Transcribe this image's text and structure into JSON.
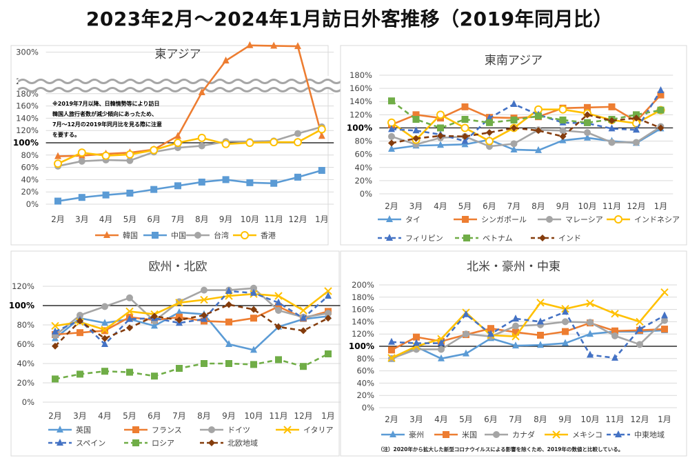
{
  "page": {
    "title": "2023年2月～2024年1月訪日外客推移（2019年同月比）",
    "footnote": "（注）2020年から拡大した新型コロナウイルスによる影響を除くため、2019年の数値と比較している。"
  },
  "colors": {
    "blue": "#5B9BD5",
    "orange": "#ED7D31",
    "gray": "#A5A5A5",
    "yellow": "#FFC000",
    "dblue": "#4472C4",
    "green": "#70AD47",
    "brown": "#843C0C",
    "gold": "#FFD700"
  },
  "chart_data": [
    {
      "type": "line",
      "title": "東アジア",
      "categories": [
        "2月",
        "3月",
        "4月",
        "5月",
        "6月",
        "7月",
        "8月",
        "9月",
        "10月",
        "11月",
        "12月",
        "1月"
      ],
      "broken_axis": true,
      "ylim": [
        0,
        300
      ],
      "yticks_lower": [
        "0%",
        "20%",
        "40%",
        "60%",
        "80%",
        "100%",
        "120%",
        "140%",
        "160%",
        "180%",
        "200%"
      ],
      "yticks_upper": [
        "300%"
      ],
      "note": "※2019年7月以降、日韓情勢等により訪日韓国人旅行者数が減少傾向にあったため、7月～12月の2019年同月比を見る際に注意を要する。",
      "series": [
        {
          "name": "韓国",
          "color": "#ED7D31",
          "marker": "triangle",
          "values": [
            78,
            79,
            82,
            84,
            89,
            111,
            182,
            281,
            315,
            314,
            313,
            111
          ]
        },
        {
          "name": "中国",
          "color": "#5B9BD5",
          "marker": "square",
          "values": [
            5,
            11,
            15,
            18,
            24,
            30,
            36,
            40,
            35,
            34,
            44,
            55
          ]
        },
        {
          "name": "台湾",
          "color": "#A5A5A5",
          "marker": "circle",
          "values": [
            62,
            70,
            72,
            71,
            85,
            92,
            95,
            102,
            102,
            103,
            115,
            126
          ]
        },
        {
          "name": "香港",
          "color": "#FFC000",
          "marker": "circle-open",
          "values": [
            66,
            84,
            79,
            81,
            88,
            100,
            108,
            98,
            100,
            101,
            101,
            122
          ]
        }
      ]
    },
    {
      "type": "line",
      "title": "東南アジア",
      "categories": [
        "2月",
        "3月",
        "4月",
        "5月",
        "6月",
        "7月",
        "8月",
        "9月",
        "10月",
        "11月",
        "12月",
        "1月"
      ],
      "ylim": [
        0,
        180
      ],
      "yticks": [
        "0%",
        "20%",
        "40%",
        "60%",
        "80%",
        "100%",
        "120%",
        "140%",
        "160%",
        "180%"
      ],
      "series": [
        {
          "name": "タイ",
          "color": "#5B9BD5",
          "marker": "triangle",
          "values": [
            68,
            73,
            74,
            75,
            82,
            67,
            66,
            81,
            85,
            80,
            77,
            99
          ]
        },
        {
          "name": "シンガポール",
          "color": "#ED7D31",
          "marker": "square",
          "values": [
            105,
            120,
            115,
            132,
            116,
            115,
            117,
            130,
            131,
            132,
            110,
            150
          ]
        },
        {
          "name": "マレーシア",
          "color": "#A5A5A5",
          "marker": "circle",
          "values": [
            87,
            75,
            85,
            87,
            72,
            76,
            97,
            96,
            93,
            78,
            78,
            102
          ]
        },
        {
          "name": "インドネシア",
          "color": "#FFC000",
          "marker": "circle-open",
          "values": [
            108,
            82,
            120,
            100,
            80,
            100,
            128,
            128,
            122,
            112,
            107,
            127
          ]
        },
        {
          "name": "フィリピン",
          "color": "#4472C4",
          "marker": "triangle",
          "dash": true,
          "values": [
            98,
            96,
            90,
            80,
            115,
            136,
            120,
            108,
            107,
            99,
            97,
            157
          ]
        },
        {
          "name": "ベトナム",
          "color": "#70AD47",
          "marker": "square",
          "dash": true,
          "values": [
            141,
            113,
            100,
            113,
            108,
            112,
            118,
            112,
            108,
            113,
            120,
            127
          ]
        },
        {
          "name": "インド",
          "color": "#843C0C",
          "marker": "diamond",
          "dash": true,
          "values": [
            77,
            84,
            88,
            87,
            93,
            100,
            96,
            87,
            120,
            111,
            115,
            100
          ]
        }
      ]
    },
    {
      "type": "line",
      "title": "欧州・北欧",
      "categories": [
        "2月",
        "3月",
        "4月",
        "5月",
        "6月",
        "7月",
        "8月",
        "9月",
        "10月",
        "11月",
        "12月",
        "1月"
      ],
      "ylim": [
        0,
        120
      ],
      "yticks": [
        "0%",
        "20%",
        "40%",
        "60%",
        "80%",
        "100%",
        "120%"
      ],
      "series": [
        {
          "name": "英国",
          "color": "#5B9BD5",
          "marker": "triangle",
          "values": [
            66,
            87,
            82,
            86,
            79,
            93,
            91,
            60,
            54,
            78,
            86,
            89
          ]
        },
        {
          "name": "フランス",
          "color": "#ED7D31",
          "marker": "square",
          "values": [
            70,
            72,
            74,
            88,
            85,
            88,
            84,
            83,
            87,
            99,
            87,
            94
          ]
        },
        {
          "name": "ドイツ",
          "color": "#A5A5A5",
          "marker": "circle",
          "values": [
            69,
            90,
            99,
            108,
            84,
            104,
            116,
            116,
            118,
            95,
            88,
            92
          ]
        },
        {
          "name": "イタリア",
          "color": "#FFC000",
          "marker": "star",
          "values": [
            79,
            83,
            75,
            94,
            91,
            103,
            106,
            110,
            112,
            110,
            95,
            115
          ]
        },
        {
          "name": "スペイン",
          "color": "#4472C4",
          "marker": "triangle",
          "dash": true,
          "values": [
            73,
            85,
            60,
            86,
            87,
            82,
            86,
            115,
            113,
            103,
            87,
            110
          ]
        },
        {
          "name": "ロシア",
          "color": "#70AD47",
          "marker": "square",
          "dash": true,
          "values": [
            24,
            29,
            32,
            31,
            27,
            35,
            40,
            40,
            39,
            44,
            37,
            50
          ]
        },
        {
          "name": "北欧地域",
          "color": "#843C0C",
          "marker": "diamond",
          "dash": true,
          "values": [
            58,
            84,
            66,
            77,
            89,
            85,
            90,
            101,
            96,
            78,
            74,
            87
          ]
        }
      ]
    },
    {
      "type": "line",
      "title": "北米・豪州・中東",
      "categories": [
        "2月",
        "3月",
        "4月",
        "5月",
        "6月",
        "7月",
        "8月",
        "9月",
        "10月",
        "11月",
        "12月",
        "1月"
      ],
      "ylim": [
        0,
        200
      ],
      "yticks": [
        "0%",
        "20%",
        "40%",
        "60%",
        "80%",
        "100%",
        "120%",
        "140%",
        "160%",
        "180%",
        "200%"
      ],
      "footnote_ref": true,
      "series": [
        {
          "name": "豪州",
          "color": "#5B9BD5",
          "marker": "triangle",
          "values": [
            79,
            99,
            80,
            88,
            113,
            101,
            102,
            105,
            120,
            124,
            124,
            126
          ]
        },
        {
          "name": "米国",
          "color": "#ED7D31",
          "marker": "square",
          "values": [
            94,
            115,
            108,
            119,
            129,
            123,
            118,
            124,
            138,
            125,
            126,
            128
          ]
        },
        {
          "name": "カナダ",
          "color": "#A5A5A5",
          "marker": "circle",
          "values": [
            80,
            95,
            95,
            120,
            116,
            133,
            135,
            140,
            139,
            117,
            103,
            142
          ]
        },
        {
          "name": "メキシコ",
          "color": "#FFC000",
          "marker": "star",
          "values": [
            81,
            100,
            112,
            155,
            118,
            116,
            171,
            161,
            170,
            153,
            140,
            188
          ]
        },
        {
          "name": "中東地域",
          "color": "#4472C4",
          "marker": "triangle",
          "dash": true,
          "values": [
            107,
            105,
            105,
            152,
            120,
            145,
            140,
            156,
            86,
            81,
            128,
            150
          ]
        }
      ]
    }
  ]
}
